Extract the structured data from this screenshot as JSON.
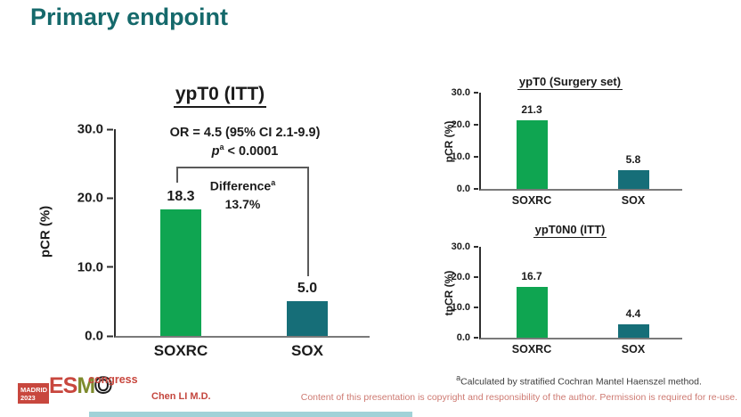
{
  "slide": {
    "title": "Primary endpoint",
    "accent_color": "#15696B"
  },
  "colors": {
    "soxrc_bar_green": "#0FA551",
    "sox_bar_teal": "#166E78",
    "title_teal": "#15696B",
    "footer_red": "#C4463E",
    "copyright_red": "#CE7A72"
  },
  "chart_data": [
    {
      "id": "ypt0-itt",
      "type": "bar",
      "title": "ypT0 (ITT)",
      "ylabel": "pCR (%)",
      "ylim": [
        0,
        30
      ],
      "yticks": [
        "30.0",
        "20.0",
        "10.0",
        "0.0"
      ],
      "grid": false,
      "legend": false,
      "categories": [
        "SOXRC",
        "SOX"
      ],
      "values": [
        18.3,
        5.0
      ],
      "value_labels": [
        "18.3",
        "5.0"
      ],
      "bar_colors": [
        "#0FA551",
        "#166E78"
      ],
      "annotations": {
        "or_text": "OR = 4.5 (95% CI 2.1-9.9)",
        "p_symbol": "p",
        "p_sup": "a",
        "p_rest": "< 0.0001",
        "diff_label": "Difference",
        "diff_sup": "a",
        "diff_value": "13.7%"
      }
    },
    {
      "id": "ypt0-surgery-set",
      "type": "bar",
      "title": "ypT0 (Surgery set)",
      "ylabel": "pCR (%)",
      "ylim": [
        0,
        30
      ],
      "yticks": [
        "30.0",
        "20.0",
        "10.0",
        "0.0"
      ],
      "grid": false,
      "legend": false,
      "categories": [
        "SOXRC",
        "SOX"
      ],
      "values": [
        21.3,
        5.8
      ],
      "value_labels": [
        "21.3",
        "5.8"
      ],
      "bar_colors": [
        "#0FA551",
        "#166E78"
      ]
    },
    {
      "id": "ypt0n0-itt",
      "type": "bar",
      "title": "ypT0N0 (ITT)",
      "ylabel": "tpCR (%)",
      "ylim": [
        0,
        30
      ],
      "yticks": [
        "30.0",
        "20.0",
        "10.0",
        "0.0"
      ],
      "grid": false,
      "legend": false,
      "categories": [
        "SOXRC",
        "SOX"
      ],
      "values": [
        16.7,
        4.4
      ],
      "value_labels": [
        "16.7",
        "4.4"
      ],
      "bar_colors": [
        "#0FA551",
        "#166E78"
      ]
    }
  ],
  "footnote": {
    "sup": "a",
    "text": "Calculated by stratified Cochran Mantel Haenszel method."
  },
  "footer": {
    "author": "Chen LI M.D.",
    "copyright": "Content of this presentation is copyright and responsibility of the author. Permission is required for re-use.",
    "logo": {
      "venue": "MADRID",
      "year": "2023",
      "org_es": "ES",
      "org_m": "M",
      "org_o": "O",
      "suffix": "congress"
    }
  }
}
